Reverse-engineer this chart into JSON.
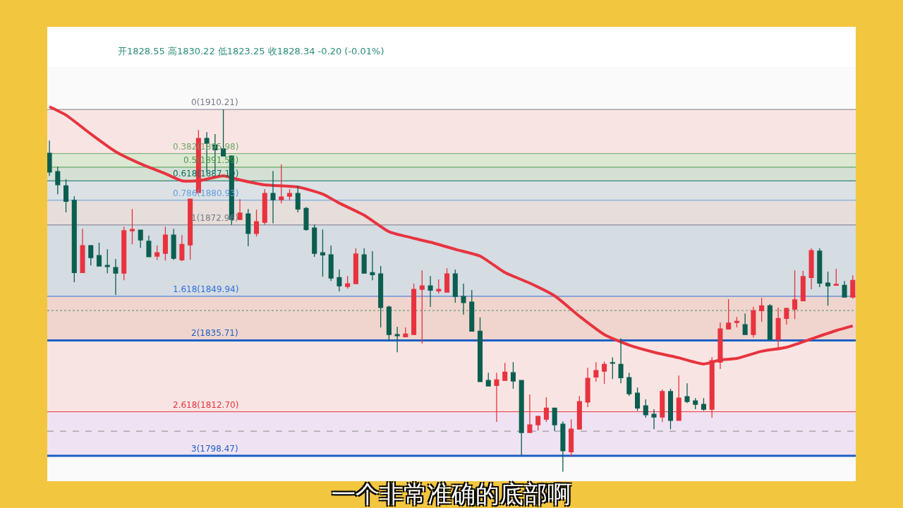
{
  "chart_data": {
    "type": "candlestick",
    "annotations": [
      "开1828.55 高1830.22 低1823.25 收1828.34 -0.20 (-0.01%)",
      "一个非常准确的底部啊"
    ],
    "categories": [
      null,
      null,
      null,
      null,
      null,
      null,
      null,
      null,
      null,
      null,
      null,
      null,
      null,
      null,
      null,
      null,
      null,
      null,
      null,
      null,
      null,
      null,
      null,
      null,
      null,
      null,
      null,
      null,
      null,
      null,
      null,
      null,
      null,
      null,
      null,
      null,
      null,
      null,
      null,
      null,
      null,
      null,
      null,
      null,
      null,
      null,
      null,
      null,
      null,
      null,
      null,
      null,
      null,
      null,
      null,
      null,
      null,
      null,
      null,
      null,
      null,
      null,
      null,
      null,
      null,
      null,
      null,
      null,
      null,
      null,
      null,
      null,
      null,
      null,
      null,
      null,
      null,
      null,
      null,
      null,
      null,
      null,
      null,
      null,
      null,
      null,
      null,
      null,
      null,
      null,
      null,
      null,
      null,
      null,
      null,
      null,
      null,
      null
    ],
    "colors": [
      "#0b5e50",
      "#0b5e50",
      "#0b5e50",
      "#0b5e50",
      "#e8333f",
      "#0b5e50",
      "#0b5e50",
      "#0b5e50",
      "#0b5e50",
      "#e8333f",
      "#e8333f",
      "#0b5e50",
      "#0b5e50",
      "#e8333f",
      "#e8333f",
      "#0b5e50",
      "#e8333f",
      "#e8333f",
      "#e8333f",
      "#0b5e50",
      "#0b5e50",
      "#0b5e50",
      "#0b5e50",
      "#e8333f",
      "#0b5e50",
      "#e8333f",
      "#e8333f",
      "#0b5e50",
      "#e8333f",
      "#e8333f",
      "#0b5e50",
      "#0b5e50",
      "#0b5e50",
      "#0b5e50",
      "#0b5e50",
      "#0b5e50",
      "#e8333f",
      "#e8333f",
      "#0b5e50",
      "#0b5e50",
      "#0b5e50",
      "#0b5e50",
      "#0b5e50",
      "#e8333f",
      "#e8333f",
      "#e8333f",
      "#0b5e50",
      "#e8333f",
      "#e8333f",
      "#0b5e50",
      "#0b5e50",
      "#0b5e50",
      "#0b5e50",
      "#0b5e50",
      "#e8333f",
      "#e8333f",
      "#0b5e50",
      "#0b5e50",
      "#e8333f",
      "#e8333f",
      "#e8333f",
      "#0b5e50",
      "#0b5e50",
      "#e8333f",
      "#e8333f",
      "#e8333f",
      "#e8333f",
      "#e8333f",
      "#0b5e50",
      "#0b5e50",
      "#0b5e50",
      "#0b5e50",
      "#0b5e50",
      "#0b5e50",
      "#e8333f",
      "#0b5e50",
      "#e8333f",
      "#0b5e50",
      "#0b5e50",
      "#0b5e50",
      "#e8333f",
      "#e8333f",
      "#e8333f",
      "#e8333f",
      "#0b5e50",
      "#e8333f",
      "#e8333f",
      "#0b5e50",
      "#e8333f",
      "#e8333f",
      "#e8333f",
      "#e8333f",
      "#e8333f",
      "#0b5e50",
      "#0b5e50",
      "#e8333f",
      "#0b5e50",
      "#e8333f"
    ],
    "ohlc": [
      [
        1896.1,
        1900.2,
        1888.8,
        1890.0
      ],
      [
        1890.2,
        1891.8,
        1882.9,
        1885.9
      ],
      [
        1885.6,
        1887.7,
        1877.0,
        1880.6
      ],
      [
        1880.9,
        1882.2,
        1854.5,
        1857.6
      ],
      [
        1857.6,
        1871.7,
        1857.6,
        1866.3
      ],
      [
        1866.3,
        1866.5,
        1859.9,
        1862.4
      ],
      [
        1863.1,
        1867.2,
        1859.7,
        1859.7
      ],
      [
        1859.9,
        1865.1,
        1857.4,
        1859.5
      ],
      [
        1859.2,
        1862.0,
        1850.4,
        1857.4
      ],
      [
        1857.4,
        1872.4,
        1855.1,
        1871.1
      ],
      [
        1871.1,
        1878.1,
        1866.7,
        1871.5
      ],
      [
        1871.3,
        1871.3,
        1865.6,
        1868.1
      ],
      [
        1867.7,
        1869.5,
        1862.7,
        1862.7
      ],
      [
        1862.9,
        1866.3,
        1861.7,
        1864.0
      ],
      [
        1863.8,
        1872.4,
        1861.5,
        1869.7
      ],
      [
        1869.7,
        1871.7,
        1861.7,
        1862.2
      ],
      [
        1861.7,
        1869.7,
        1861.3,
        1866.7
      ],
      [
        1866.5,
        1881.3,
        1861.7,
        1881.3
      ],
      [
        1883.4,
        1903.6,
        1883.4,
        1900.9
      ],
      [
        1900.9,
        1902.9,
        1889.9,
        1899.3
      ],
      [
        1898.8,
        1902.3,
        1890.4,
        1897.2
      ],
      [
        1897.5,
        1910.21,
        1895.2,
        1895.2
      ],
      [
        1895.2,
        1895.4,
        1872.96,
        1874.7
      ],
      [
        1874.7,
        1881.3,
        1874.7,
        1876.8
      ],
      [
        1876.5,
        1878.1,
        1866.1,
        1870.2
      ],
      [
        1870.2,
        1877.9,
        1869.2,
        1874.0
      ],
      [
        1873.8,
        1884.5,
        1873.1,
        1883.1
      ],
      [
        1883.1,
        1890.4,
        1873.5,
        1881.1
      ],
      [
        1881.1,
        1892.5,
        1879.9,
        1882.0
      ],
      [
        1882.2,
        1884.5,
        1880.9,
        1883.1
      ],
      [
        1883.1,
        1885.6,
        1877.0,
        1878.1
      ],
      [
        1878.3,
        1878.8,
        1871.1,
        1871.5
      ],
      [
        1872.0,
        1873.1,
        1862.7,
        1863.8
      ],
      [
        1864.0,
        1871.5,
        1856.3,
        1863.3
      ],
      [
        1863.3,
        1866.3,
        1854.9,
        1855.8
      ],
      [
        1856.0,
        1858.6,
        1851.5,
        1853.3
      ],
      [
        1853.1,
        1856.5,
        1852.4,
        1854.0
      ],
      [
        1854.0,
        1865.4,
        1854.0,
        1863.6
      ],
      [
        1863.3,
        1865.4,
        1857.4,
        1857.4
      ],
      [
        1857.6,
        1864.5,
        1855.1,
        1856.9
      ],
      [
        1857.2,
        1859.7,
        1839.9,
        1846.3
      ],
      [
        1846.5,
        1846.9,
        1835.6,
        1837.6
      ],
      [
        1837.6,
        1840.1,
        1831.9,
        1837.2
      ],
      [
        1836.9,
        1839.9,
        1836.9,
        1837.8
      ],
      [
        1837.6,
        1854.0,
        1837.6,
        1852.2
      ],
      [
        1852.2,
        1858.3,
        1834.7,
        1853.3
      ],
      [
        1853.3,
        1856.5,
        1846.5,
        1851.9
      ],
      [
        1851.7,
        1855.4,
        1850.8,
        1852.2
      ],
      [
        1851.3,
        1859.0,
        1851.3,
        1857.2
      ],
      [
        1857.2,
        1858.6,
        1847.9,
        1849.9
      ],
      [
        1849.9,
        1854.0,
        1844.0,
        1847.9
      ],
      [
        1848.1,
        1852.0,
        1838.7,
        1838.7
      ],
      [
        1838.7,
        1843.1,
        1822.4,
        1822.4
      ],
      [
        1822.8,
        1825.3,
        1821.0,
        1821.0
      ],
      [
        1821.2,
        1825.3,
        1809.4,
        1823.0
      ],
      [
        1822.8,
        1828.5,
        1822.8,
        1825.5
      ],
      [
        1825.3,
        1828.7,
        1820.1,
        1822.6
      ],
      [
        1822.8,
        1822.8,
        1798.7,
        1806.0
      ],
      [
        1806.0,
        1818.3,
        1806.0,
        1808.5
      ],
      [
        1808.5,
        1811.4,
        1806.7,
        1811.2
      ],
      [
        1810.3,
        1817.4,
        1809.4,
        1813.9
      ],
      [
        1813.9,
        1813.9,
        1806.4,
        1808.5
      ],
      [
        1808.7,
        1809.6,
        1793.4,
        1800.1
      ],
      [
        1799.8,
        1810.3,
        1798.2,
        1807.1
      ],
      [
        1807.1,
        1817.8,
        1807.1,
        1816.0
      ],
      [
        1815.8,
        1826.9,
        1814.2,
        1823.5
      ],
      [
        1823.9,
        1828.7,
        1822.4,
        1826.0
      ],
      [
        1825.8,
        1828.9,
        1821.7,
        1828.0
      ],
      [
        1828.55,
        1830.22,
        1823.25,
        1828.34
      ],
      [
        1828.0,
        1836.4,
        1821.9,
        1823.7
      ],
      [
        1823.7,
        1825.3,
        1817.8,
        1818.5
      ],
      [
        1818.7,
        1820.5,
        1813.0,
        1813.9
      ],
      [
        1814.6,
        1816.7,
        1810.8,
        1811.7
      ],
      [
        1811.9,
        1813.5,
        1807.1,
        1811.0
      ],
      [
        1811.0,
        1819.9,
        1809.4,
        1819.2
      ],
      [
        1819.2,
        1820.1,
        1807.1,
        1809.9
      ],
      [
        1809.9,
        1824.4,
        1809.9,
        1817.1
      ],
      [
        1817.6,
        1821.9,
        1815.5,
        1816.0
      ],
      [
        1816.2,
        1817.1,
        1813.5,
        1815.1
      ],
      [
        1815.1,
        1817.1,
        1813.0,
        1813.5
      ],
      [
        1813.5,
        1830.3,
        1810.8,
        1829.2
      ],
      [
        1828.7,
        1841.5,
        1826.5,
        1839.4
      ],
      [
        1839.4,
        1849.0,
        1839.4,
        1841.3
      ],
      [
        1841.5,
        1843.3,
        1839.9,
        1841.9
      ],
      [
        1840.8,
        1844.4,
        1837.6,
        1837.6
      ],
      [
        1837.6,
        1846.5,
        1836.7,
        1845.3
      ],
      [
        1845.3,
        1849.4,
        1841.7,
        1846.9
      ],
      [
        1846.9,
        1847.4,
        1836.0,
        1836.0
      ],
      [
        1836.0,
        1846.3,
        1833.3,
        1842.8
      ],
      [
        1842.8,
        1846.3,
        1840.8,
        1846.0
      ],
      [
        1845.8,
        1858.3,
        1842.6,
        1848.8
      ],
      [
        1848.5,
        1858.1,
        1848.5,
        1856.3
      ],
      [
        1856.0,
        1865.4,
        1852.2,
        1864.7
      ],
      [
        1864.5,
        1865.4,
        1852.9,
        1854.2
      ],
      [
        1854.2,
        1857.9,
        1846.9,
        1853.3
      ],
      [
        1853.5,
        1858.8,
        1853.5,
        1853.8
      ],
      [
        1853.5,
        1854.9,
        1849.7,
        1849.7
      ],
      [
        1849.7,
        1856.7,
        1849.2,
        1855.1
      ]
    ],
    "series": [
      {
        "type": "line",
        "color": "#e8333f",
        "values": [
          1911.1,
          null,
          1908.4,
          null,
          null,
          1902.3,
          null,
          null,
          1896.6,
          null,
          null,
          1892.7,
          null,
          null,
          1889.5,
          null,
          1887.2,
          null,
          1887.2,
          null,
          null,
          1888.8,
          null,
          1887.5,
          null,
          null,
          1885.9,
          null,
          null,
          null,
          1885.2,
          null,
          null,
          1882.9,
          null,
          1880.0,
          null,
          null,
          1876.1,
          null,
          null,
          1870.8,
          null,
          1869.3,
          null,
          null,
          1867.4,
          null,
          null,
          1865.1,
          null,
          null,
          1862.9,
          null,
          null,
          1857.6,
          null,
          null,
          1854.2,
          null,
          null,
          1850.1,
          null,
          null,
          1843.5,
          null,
          null,
          1837.6,
          null,
          null,
          1834.2,
          null,
          null,
          1831.9,
          null,
          null,
          1830.1,
          null,
          null,
          1828.1,
          null,
          1829.4,
          null,
          1829.9,
          null,
          null,
          1832.2,
          null,
          null,
          1833.5,
          null,
          null,
          1836.2,
          null,
          null,
          1838.9,
          null,
          1840.4
        ]
      }
    ],
    "ylim": [
      1790.3,
      1923.9
    ],
    "tick_labels": false,
    "grid": false,
    "marker": "none",
    "bands": [
      {
        "axis": "y",
        "from": 1910.21,
        "to": 1895.98,
        "color": "#f6d3d0"
      },
      {
        "axis": "y",
        "from": 1895.98,
        "to": 1891.59,
        "color": "#c3d8b0"
      },
      {
        "axis": "y",
        "from": 1891.59,
        "to": 1887.19,
        "color": "#b7cbb5"
      },
      {
        "axis": "y",
        "from": 1887.19,
        "to": 1880.93,
        "color": "#c1ccd3"
      },
      {
        "axis": "y",
        "from": 1880.93,
        "to": 1872.96,
        "color": "#d6c6bf"
      },
      {
        "axis": "y",
        "from": 1872.96,
        "to": 1849.94,
        "color": "#b6c3ce"
      },
      {
        "axis": "y",
        "from": 1849.94,
        "to": 1835.71,
        "color": "#e6b7a8"
      },
      {
        "axis": "y",
        "from": 1835.71,
        "to": 1812.7,
        "color": "#f6d3d0"
      },
      {
        "axis": "y",
        "from": 1812.7,
        "to": 1798.47,
        "color": "#e5cfec"
      }
    ],
    "ref_lines": [
      {
        "axis": "y",
        "value": 1910.21,
        "label": "0(1910.21)",
        "color": "#787b86"
      },
      {
        "axis": "y",
        "value": 1895.98,
        "label": "0.382(1895.98)",
        "color": "#6fa86a"
      },
      {
        "axis": "y",
        "value": 1891.59,
        "label": "0.5(1891.59)",
        "color": "#4c9a4a"
      },
      {
        "axis": "y",
        "value": 1887.19,
        "label": "0.618(1887.19)",
        "color": "#0b6e60"
      },
      {
        "axis": "y",
        "value": 1880.93,
        "label": "0.786(1880.93)",
        "color": "#64a0e0"
      },
      {
        "axis": "y",
        "value": 1872.96,
        "label": "1(1872.96)",
        "color": "#787b86"
      },
      {
        "axis": "y",
        "value": 1849.94,
        "label": "1.618(1849.94)",
        "color": "#2e6fd8"
      },
      {
        "axis": "y",
        "value": 1845.35,
        "color": "#4f8f7a",
        "line_style": "dotted"
      },
      {
        "axis": "y",
        "value": 1835.71,
        "label": "2(1835.71)",
        "color": "#1f5fc4",
        "line_style": "solid"
      },
      {
        "axis": "y",
        "value": 1812.7,
        "label": "2.618(1812.70)",
        "color": "#e8333f"
      },
      {
        "axis": "y",
        "value": 1806.43,
        "color": "#888888",
        "line_style": "dashed"
      },
      {
        "axis": "y",
        "value": 1798.47,
        "label": "3(1798.47)",
        "color": "#1f5fc4",
        "line_style": "solid"
      }
    ]
  }
}
